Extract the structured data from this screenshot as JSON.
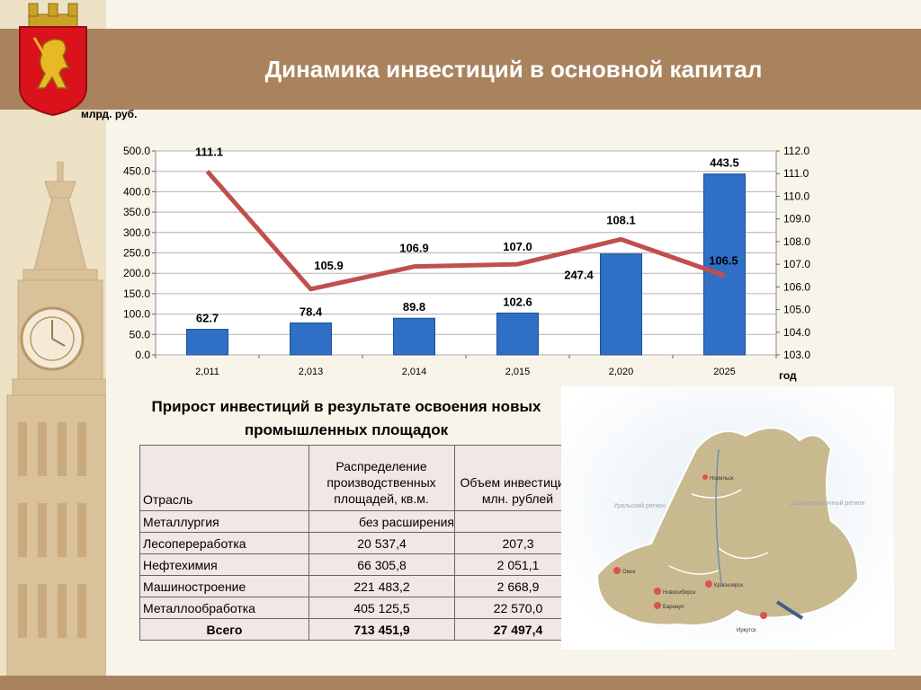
{
  "slide": {
    "title": "Динамика инвестиций в основной капитал",
    "unit_label": "млрд. руб.",
    "x_axis_label": "год"
  },
  "chart_data": {
    "type": "bar+line",
    "categories": [
      "2,011",
      "2,013",
      "2,014",
      "2,015",
      "2,020",
      "2025"
    ],
    "series": [
      {
        "values": [
          62.7,
          78.4,
          89.8,
          102.6,
          247.4,
          443.5
        ],
        "axis": "left",
        "kind": "bar",
        "color": "#2f6fc5"
      },
      {
        "values": [
          111.1,
          105.9,
          106.9,
          107.0,
          108.1,
          106.5
        ],
        "axis": "right",
        "kind": "line",
        "color": "#c0504d"
      }
    ],
    "data_labels_bar": [
      "62.7",
      "78.4",
      "89.8",
      "102.6",
      "247.4",
      "443.5"
    ],
    "data_labels_line": [
      "111.1",
      "105.9",
      "106.9",
      "107.0",
      "108.1",
      "106.5"
    ],
    "left_ticks": [
      "0.0",
      "50.0",
      "100.0",
      "150.0",
      "200.0",
      "250.0",
      "300.0",
      "350.0",
      "400.0",
      "450.0",
      "500.0"
    ],
    "right_ticks": [
      "103.0",
      "104.0",
      "105.0",
      "106.0",
      "107.0",
      "108.0",
      "109.0",
      "110.0",
      "111.0",
      "112.0"
    ],
    "ylim_left": [
      0,
      500
    ],
    "ylim_right": [
      103,
      112
    ],
    "grid": "horizontal"
  },
  "table": {
    "title": "Прирост инвестиций в результате освоения новых промышленных площадок",
    "headers": [
      "Отрасль",
      "Распределение производственных площадей, кв.м.",
      "Объем инвестиций, млн. рублей"
    ],
    "rows": [
      [
        "Металлургия",
        "без расширения",
        ""
      ],
      [
        "Лесопереработка",
        "20 537,4",
        "207,3"
      ],
      [
        "Нефтехимия",
        "66 305,8",
        "2 051,1"
      ],
      [
        "Машиностроение",
        "221 483,2",
        "2 668,9"
      ],
      [
        "Металлообработка",
        "405 125,5",
        "22 570,0"
      ]
    ],
    "total": [
      "Всего",
      "713 451,9",
      "27 497,4"
    ]
  },
  "map": {
    "labels": [
      "Уральский регион",
      "Дальневосточный регион",
      "Норильск",
      "Омск",
      "Новосибирск",
      "Красноярск",
      "Барнаул",
      "Иркутск"
    ]
  },
  "colors": {
    "band": "#a9835e",
    "bar": "#2f6fc5",
    "line": "#c0504d"
  }
}
